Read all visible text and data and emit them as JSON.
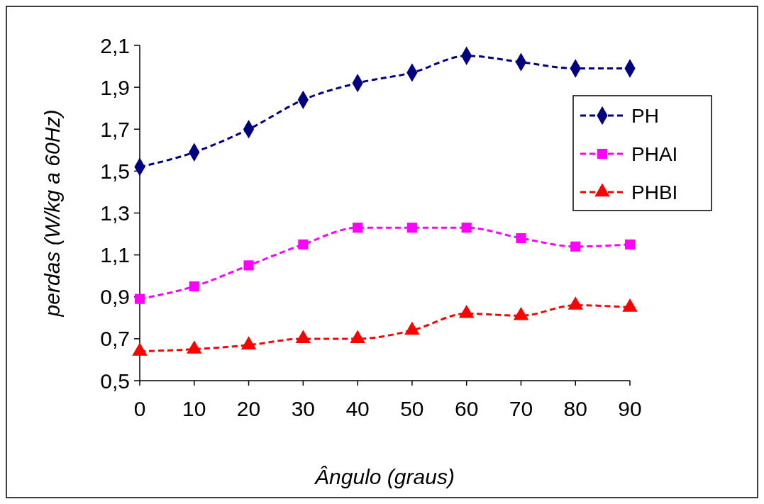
{
  "chart_data": {
    "type": "line",
    "xlabel": "Ângulo (graus)",
    "ylabel": "perdas (W/kg a 60Hz)",
    "x": [
      0,
      10,
      20,
      30,
      40,
      50,
      60,
      70,
      80,
      90
    ],
    "series": [
      {
        "name": "PH",
        "color": "#000080",
        "marker": "diamond",
        "values": [
          1.52,
          1.59,
          1.7,
          1.84,
          1.92,
          1.97,
          2.05,
          2.02,
          1.99,
          1.99
        ]
      },
      {
        "name": "PHAI",
        "color": "#ff00ff",
        "marker": "square",
        "values": [
          0.89,
          0.95,
          1.05,
          1.15,
          1.23,
          1.23,
          1.23,
          1.18,
          1.14,
          1.15
        ]
      },
      {
        "name": "PHBI",
        "color": "#ff0000",
        "marker": "triangle",
        "values": [
          0.64,
          0.65,
          0.67,
          0.7,
          0.7,
          0.74,
          0.82,
          0.81,
          0.86,
          0.85
        ]
      }
    ],
    "xlim": [
      0,
      90
    ],
    "xticks": [
      0,
      10,
      20,
      30,
      40,
      50,
      60,
      70,
      80,
      90
    ],
    "ylim": [
      0.5,
      2.1
    ],
    "yticks": [
      {
        "value": 0.5,
        "label": "0,5"
      },
      {
        "value": 0.7,
        "label": "0,7"
      },
      {
        "value": 0.9,
        "label": "0,9"
      },
      {
        "value": 1.1,
        "label": "1,1"
      },
      {
        "value": 1.3,
        "label": "1,3"
      },
      {
        "value": 1.5,
        "label": "1,5"
      },
      {
        "value": 1.7,
        "label": "1,7"
      },
      {
        "value": 1.9,
        "label": "1,9"
      },
      {
        "value": 2.1,
        "label": "2,1"
      }
    ],
    "grid": false,
    "legend": "top right",
    "line_style": "dashed"
  }
}
